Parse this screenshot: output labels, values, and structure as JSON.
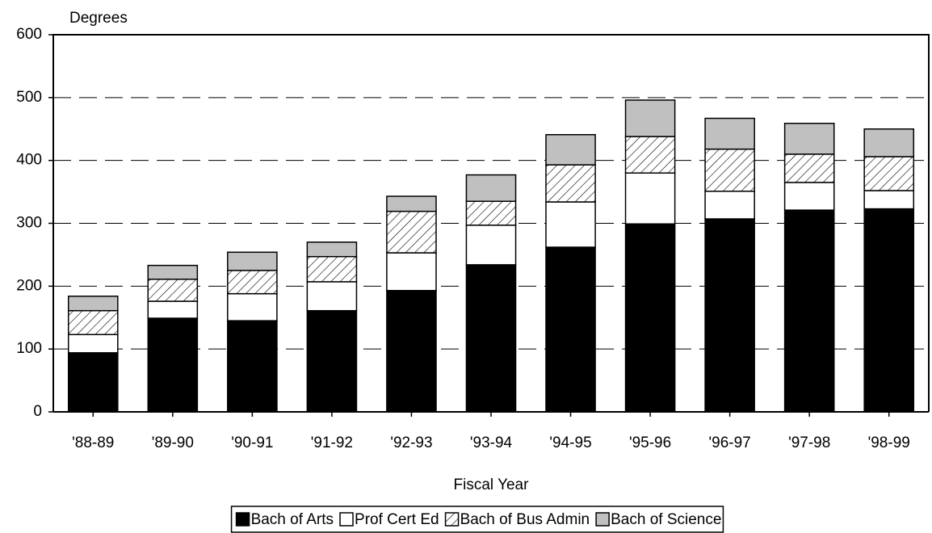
{
  "chart_data": {
    "type": "stacked_bar",
    "y_label": "Degrees",
    "x_label": "Fiscal Year",
    "categories": [
      "'88-89",
      "'89-90",
      "'90-91",
      "'91-92",
      "'92-93",
      "'93-94",
      "'94-95",
      "'95-96",
      "'96-97",
      "'97-98",
      "'98-99"
    ],
    "series": [
      {
        "name": "Bach of Arts",
        "color": "#000000",
        "values": [
          94,
          149,
          145,
          161,
          193,
          234,
          262,
          299,
          307,
          321,
          323
        ]
      },
      {
        "name": "Prof Cert Ed",
        "color": "#ffffff",
        "values": [
          29,
          27,
          43,
          46,
          60,
          63,
          72,
          81,
          44,
          44,
          29
        ]
      },
      {
        "name": "Bach of Bus Admin",
        "color": "#ffffff",
        "pattern": "hatch",
        "values": [
          38,
          35,
          37,
          40,
          66,
          38,
          59,
          58,
          67,
          45,
          54
        ]
      },
      {
        "name": "Bach of Science",
        "color": "#c0c0c0",
        "values": [
          23,
          22,
          29,
          23,
          24,
          42,
          48,
          58,
          49,
          49,
          44
        ]
      }
    ],
    "ylim": [
      0,
      600
    ],
    "yticks": [
      0,
      100,
      200,
      300,
      400,
      500,
      600
    ],
    "grid": true,
    "grid_style": "dashed",
    "legend": "bottom"
  }
}
